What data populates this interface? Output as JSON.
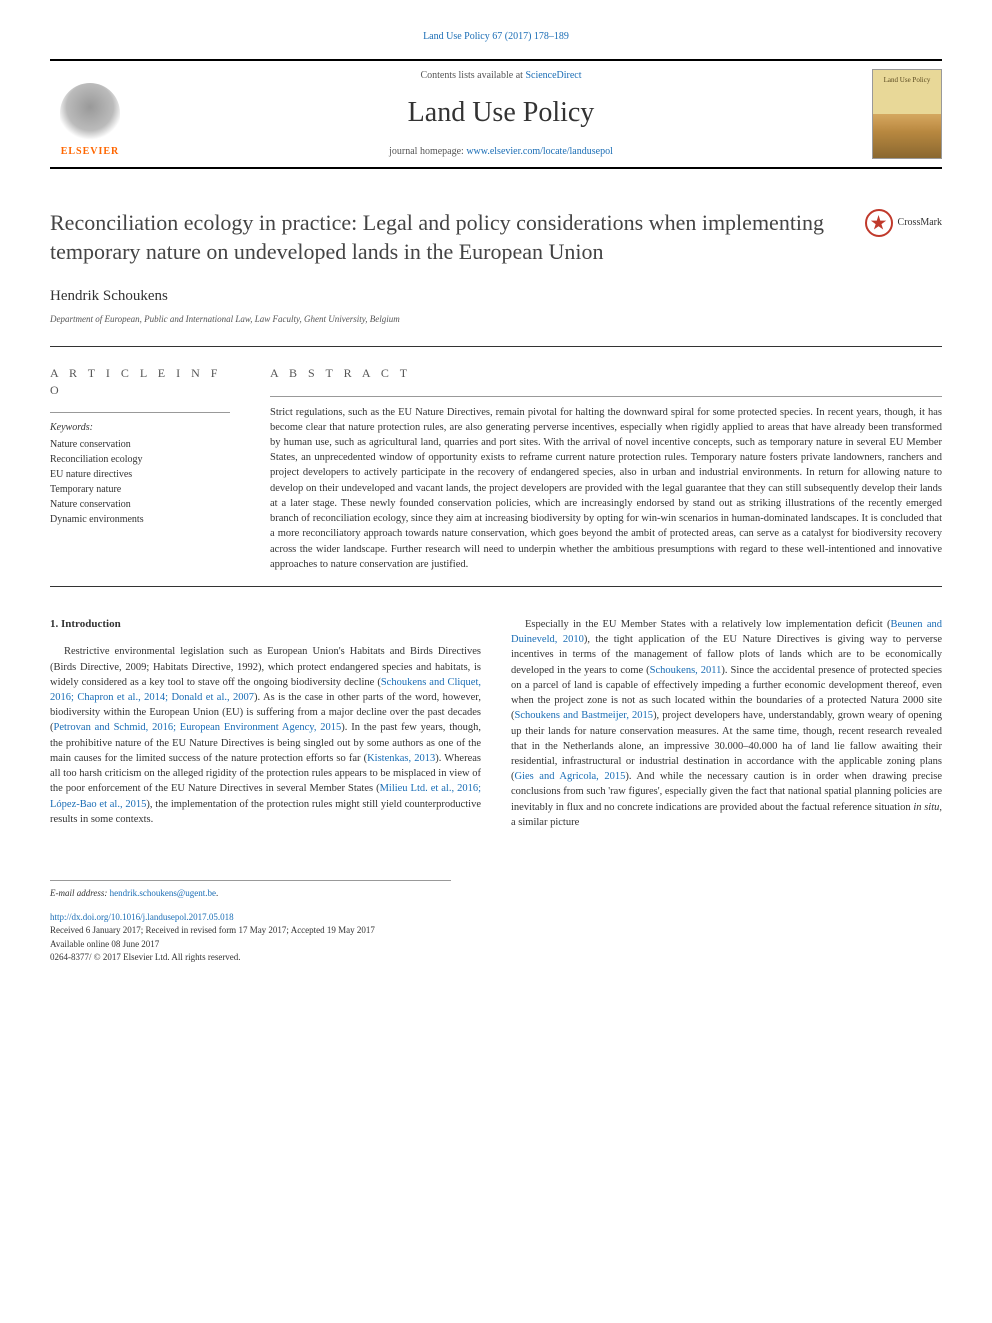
{
  "top_link": "Land Use Policy 67 (2017) 178–189",
  "header": {
    "contents_prefix": "Contents lists available at ",
    "contents_link": "ScienceDirect",
    "journal_name": "Land Use Policy",
    "homepage_prefix": "journal homepage: ",
    "homepage_link": "www.elsevier.com/locate/landusepol",
    "elsevier_label": "ELSEVIER",
    "cover_label": "Land Use Policy"
  },
  "crossmark_label": "CrossMark",
  "article": {
    "title": "Reconciliation ecology in practice: Legal and policy considerations when implementing temporary nature on undeveloped lands in the European Union",
    "author": "Hendrik Schoukens",
    "affiliation": "Department of European, Public and International Law, Law Faculty, Ghent University, Belgium"
  },
  "info": {
    "heading": "A R T I C L E  I N F O",
    "keywords_label": "Keywords:",
    "keywords": [
      "Nature conservation",
      "Reconciliation ecology",
      "EU nature directives",
      "Temporary nature",
      "Nature conservation",
      "Dynamic environments"
    ]
  },
  "abstract": {
    "heading": "A B S T R A C T",
    "text": "Strict regulations, such as the EU Nature Directives, remain pivotal for halting the downward spiral for some protected species. In recent years, though, it has become clear that nature protection rules, are also generating perverse incentives, especially when rigidly applied to areas that have already been transformed by human use, such as agricultural land, quarries and port sites. With the arrival of novel incentive concepts, such as temporary nature in several EU Member States, an unprecedented window of opportunity exists to reframe current nature protection rules. Temporary nature fosters private landowners, ranchers and project developers to actively participate in the recovery of endangered species, also in urban and industrial environments. In return for allowing nature to develop on their undeveloped and vacant lands, the project developers are provided with the legal guarantee that they can still subsequently develop their lands at a later stage. These newly founded conservation policies, which are increasingly endorsed by stand out as striking illustrations of the recently emerged branch of reconciliation ecology, since they aim at increasing biodiversity by opting for win-win scenarios in human-dominated landscapes. It is concluded that a more reconciliatory approach towards nature conservation, which goes beyond the ambit of protected areas, can serve as a catalyst for biodiversity recovery across the wider landscape. Further research will need to underpin whether the ambitious presumptions with regard to these well-intentioned and innovative approaches to nature conservation are justified."
  },
  "body": {
    "section_heading": "1. Introduction",
    "p1a": "Restrictive environmental legislation such as European Union's Habitats and Birds Directives (Birds Directive, 2009; Habitats Directive, 1992), which protect endangered species and habitats, is widely considered as a key tool to stave off the ongoing biodiversity decline (",
    "c1": "Schoukens and Cliquet, 2016; Chapron et al., 2014; Donald et al., 2007",
    "p1b": "). As is the case in other parts of the word, however, biodiversity within the European Union (EU) is suffering from a major decline over the past decades (",
    "c2": "Petrovan and Schmid, 2016; European Environment Agency, 2015",
    "p1c": "). In the past few years, though, the prohibitive nature of the EU Nature Directives is being singled out by some authors as one of the main causes for the limited success of the nature protection efforts so far (",
    "c3": "Kistenkas, 2013",
    "p1d": "). Whereas all too harsh criticism on the alleged rigidity of the protection rules appears to be misplaced in view of the poor enforcement of the EU Nature Directives in several Member States (",
    "c4": "Milieu Ltd. et al., 2016; López-Bao et al., 2015",
    "p1e": "), the implementation of the protection rules might still yield counterproductive results in some contexts.",
    "p2a": "Especially in the EU Member States with a relatively low implementation deficit (",
    "c5": "Beunen and Duineveld, 2010",
    "p2b": "), the tight application of the EU Nature Directives is giving way to perverse incentives in terms of the management of fallow plots of lands which are to be economically developed in the years to come (",
    "c6": "Schoukens, 2011",
    "p2c": "). Since the accidental presence of protected species on a parcel of land is capable of effectively impeding a further economic development thereof, even when the project zone is not as such located within the boundaries of a protected Natura 2000 site (",
    "c7": "Schoukens and Bastmeijer, 2015",
    "p2d": "), project developers have, understandably, grown weary of opening up their lands for nature conservation measures. At the same time, though, recent research revealed that in the Netherlands alone, an impressive 30.000–40.000 ha of land lie fallow awaiting their residential, infrastructural or industrial destination in accordance with the applicable zoning plans (",
    "c8": "Gies and Agricola, 2015",
    "p2e": "). And while the necessary caution is in order when drawing precise conclusions from such 'raw figures', especially given the fact that national spatial planning policies are inevitably in flux and no concrete indications are provided about the factual reference situation ",
    "insitu": "in situ",
    "p2f": ", a similar picture"
  },
  "footer": {
    "email_label": "E-mail address: ",
    "email": "hendrik.schoukens@ugent.be",
    "doi": "http://dx.doi.org/10.1016/j.landusepol.2017.05.018",
    "received": "Received 6 January 2017; Received in revised form 17 May 2017; Accepted 19 May 2017",
    "available": "Available online 08 June 2017",
    "copyright": "0264-8377/ © 2017 Elsevier Ltd. All rights reserved."
  },
  "colors": {
    "link": "#1a6db5",
    "elsevier_orange": "#ff6600",
    "crossmark_red": "#c0392b",
    "text": "#333333",
    "muted": "#555555"
  }
}
